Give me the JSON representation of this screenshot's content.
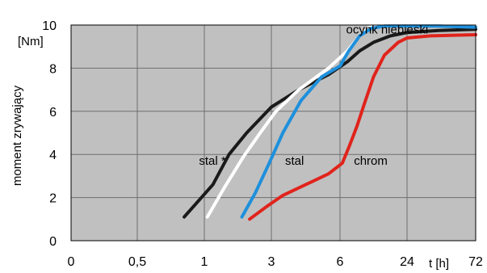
{
  "chart_data": {
    "type": "line",
    "title": "",
    "ylabel": "moment zrywający",
    "yunit": "[Nm]",
    "xlabel": "t [h]",
    "x_tick_labels": [
      "0",
      "0,5",
      "1",
      "3",
      "6",
      "24",
      "72"
    ],
    "y_ticks": [
      0,
      2,
      4,
      6,
      8,
      10
    ],
    "ylim": [
      0,
      10
    ],
    "grid": true,
    "background": "#c0c0c0",
    "series": [
      {
        "name": "stal *",
        "color": "#1a1a1a",
        "label_at": [
          0.96,
          3.7
        ],
        "points": [
          [
            0.85,
            1.1
          ],
          [
            1.15,
            2.6
          ],
          [
            1.5,
            4.0
          ],
          [
            2.0,
            5.0
          ],
          [
            3.0,
            6.2
          ],
          [
            4.2,
            7.0
          ],
          [
            5.5,
            7.7
          ],
          [
            7.0,
            8.3
          ],
          [
            9.0,
            8.8
          ],
          [
            12.0,
            9.2
          ],
          [
            17.0,
            9.5
          ],
          [
            24.0,
            9.65
          ],
          [
            40.0,
            9.75
          ],
          [
            72.0,
            9.8
          ]
        ]
      },
      {
        "name": "ocynk niebieski",
        "color": "#ffffff",
        "label_at": [
          6.8,
          9.8
        ],
        "points": [
          [
            1.05,
            1.1
          ],
          [
            1.4,
            2.5
          ],
          [
            1.9,
            3.9
          ],
          [
            2.5,
            5.0
          ],
          [
            3.2,
            6.0
          ],
          [
            4.2,
            7.0
          ],
          [
            5.5,
            8.0
          ],
          [
            7.0,
            8.8
          ],
          [
            9.0,
            9.5
          ],
          [
            11.0,
            9.9
          ],
          [
            15.0,
            10.0
          ],
          [
            24.0,
            10.0
          ],
          [
            40.0,
            10.0
          ],
          [
            72.0,
            10.0
          ]
        ]
      },
      {
        "name": "stal",
        "color": "#1e90dc",
        "label_at": [
          3.6,
          3.7
        ],
        "points": [
          [
            1.85,
            1.1
          ],
          [
            2.3,
            2.2
          ],
          [
            2.9,
            3.6
          ],
          [
            3.5,
            5.0
          ],
          [
            4.3,
            6.5
          ],
          [
            5.2,
            7.6
          ],
          [
            6.0,
            8.1
          ],
          [
            7.2,
            8.8
          ],
          [
            9.0,
            9.5
          ],
          [
            11.5,
            9.85
          ],
          [
            15.0,
            9.95
          ],
          [
            24.0,
            9.95
          ],
          [
            40.0,
            9.95
          ],
          [
            72.0,
            9.9
          ]
        ]
      },
      {
        "name": "chrom",
        "color": "#e0241c",
        "label_at": [
          8.0,
          3.7
        ],
        "points": [
          [
            2.1,
            1.0
          ],
          [
            2.8,
            1.6
          ],
          [
            3.5,
            2.1
          ],
          [
            4.5,
            2.6
          ],
          [
            5.5,
            3.1
          ],
          [
            6.3,
            3.6
          ],
          [
            7.3,
            4.4
          ],
          [
            8.5,
            5.3
          ],
          [
            10.0,
            6.4
          ],
          [
            12.0,
            7.6
          ],
          [
            15.0,
            8.6
          ],
          [
            20.0,
            9.2
          ],
          [
            24.0,
            9.4
          ],
          [
            35.0,
            9.5
          ],
          [
            72.0,
            9.55
          ]
        ]
      }
    ]
  }
}
